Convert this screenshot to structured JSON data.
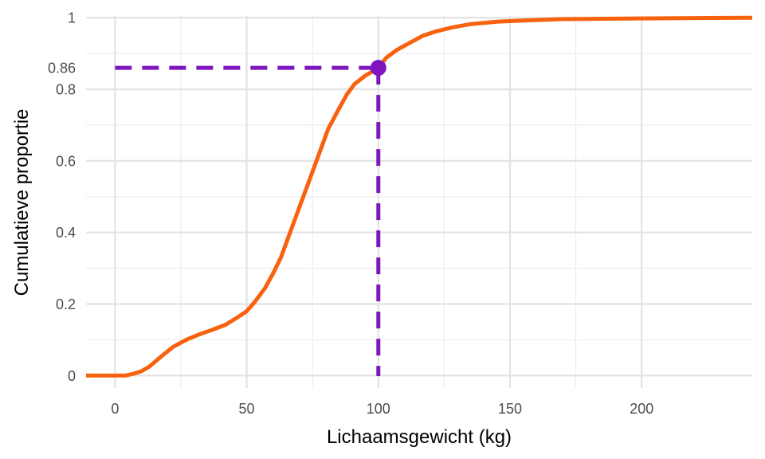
{
  "chart_data": {
    "type": "line",
    "title": "",
    "xlabel": "Lichaamsgewicht (kg)",
    "ylabel": "Cumulatieve proportie",
    "xlim": [
      -11,
      242
    ],
    "ylim": [
      -0.035,
      1.005
    ],
    "x_ticks": [
      0,
      50,
      100,
      150,
      200
    ],
    "x_tick_labels": [
      "0",
      "50",
      "100",
      "150",
      "200"
    ],
    "y_ticks": [
      0,
      0.2,
      0.4,
      0.6,
      0.8,
      1
    ],
    "y_tick_labels": [
      "0",
      "0.2",
      "0.4",
      "0.6",
      "0.8",
      "1"
    ],
    "highlight_tick_label": "0.86",
    "grid": true,
    "series": [
      {
        "color": "#F8620F",
        "points": [
          [
            -11,
            0
          ],
          [
            4,
            0
          ],
          [
            7,
            0.005
          ],
          [
            10,
            0.012
          ],
          [
            13,
            0.025
          ],
          [
            17,
            0.05
          ],
          [
            22,
            0.08
          ],
          [
            27,
            0.1
          ],
          [
            32,
            0.115
          ],
          [
            37,
            0.128
          ],
          [
            42,
            0.142
          ],
          [
            46,
            0.16
          ],
          [
            50,
            0.18
          ],
          [
            53,
            0.205
          ],
          [
            57,
            0.245
          ],
          [
            60,
            0.285
          ],
          [
            63,
            0.33
          ],
          [
            66,
            0.39
          ],
          [
            69,
            0.45
          ],
          [
            72,
            0.51
          ],
          [
            75,
            0.57
          ],
          [
            78,
            0.63
          ],
          [
            81,
            0.69
          ],
          [
            85,
            0.745
          ],
          [
            88,
            0.785
          ],
          [
            91,
            0.815
          ],
          [
            95,
            0.838
          ],
          [
            100,
            0.86
          ],
          [
            103,
            0.888
          ],
          [
            107,
            0.91
          ],
          [
            112,
            0.93
          ],
          [
            117,
            0.95
          ],
          [
            122,
            0.962
          ],
          [
            128,
            0.973
          ],
          [
            135,
            0.982
          ],
          [
            145,
            0.989
          ],
          [
            155,
            0.992
          ],
          [
            170,
            0.996
          ],
          [
            200,
            0.998
          ],
          [
            242,
            1.0
          ]
        ]
      }
    ],
    "highlight": {
      "x": 100,
      "y": 0.86,
      "color": "#7E15BD",
      "line_style": "dashed"
    }
  }
}
